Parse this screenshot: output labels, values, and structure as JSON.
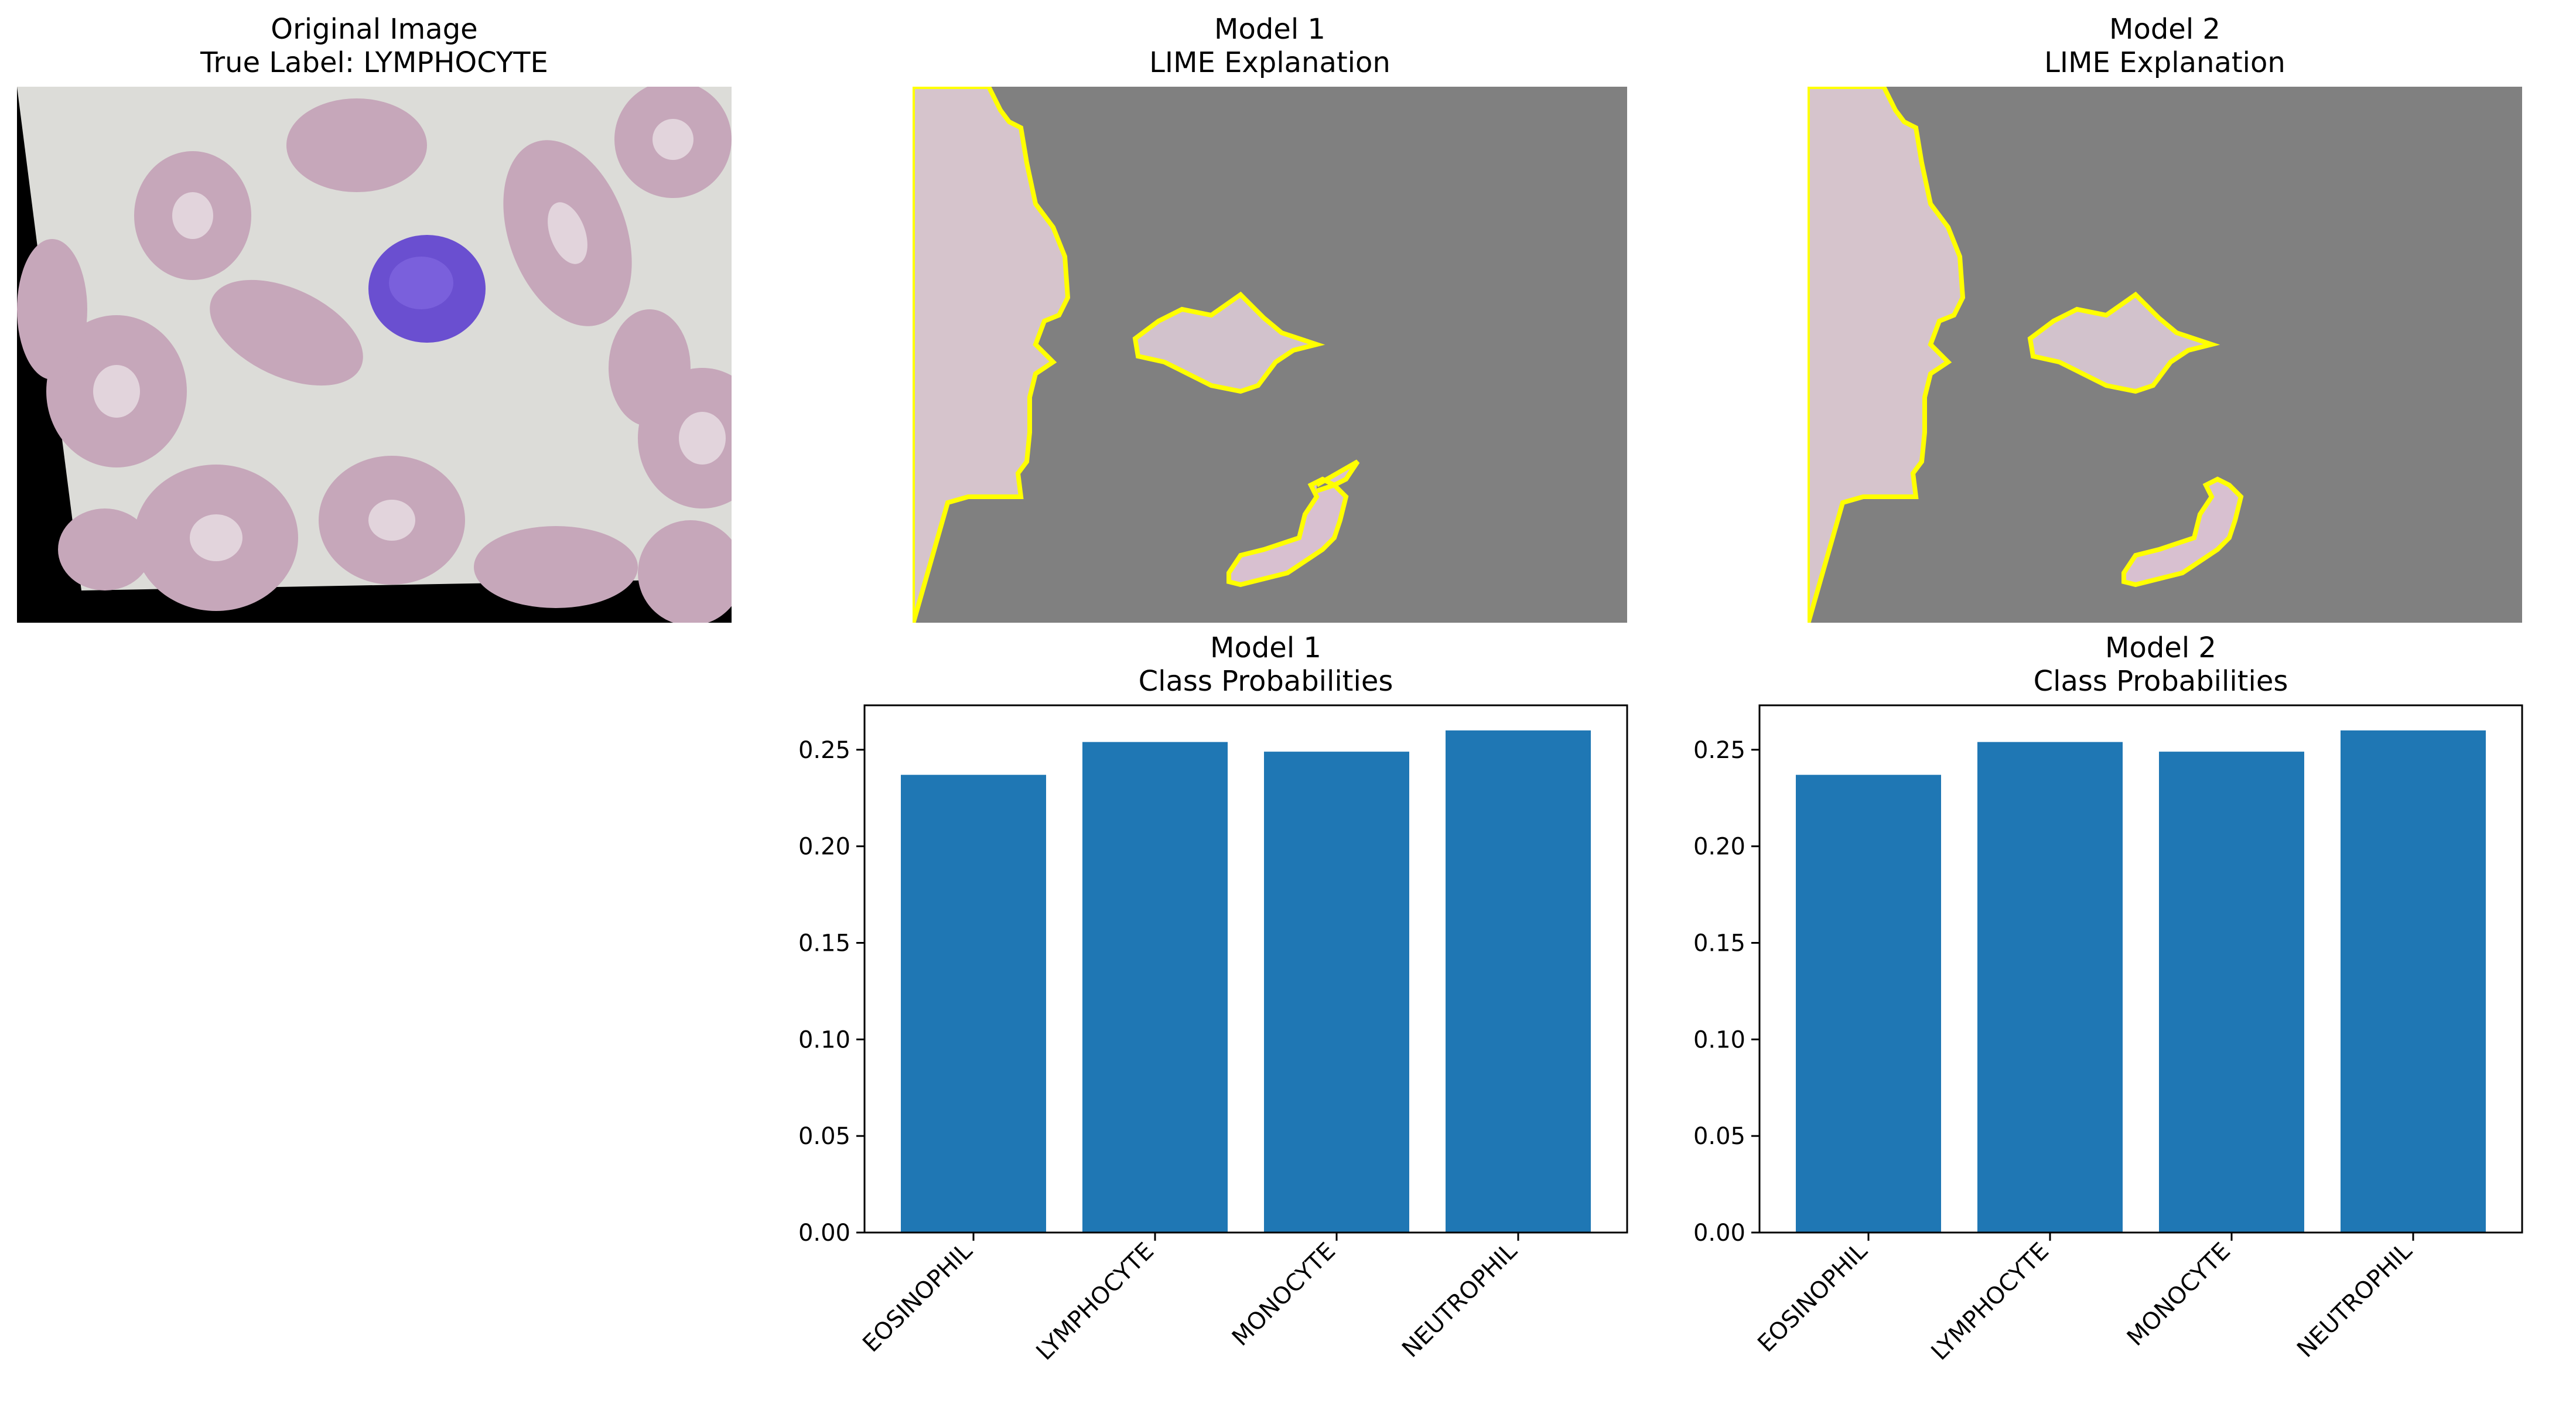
{
  "panels": {
    "original": {
      "title_line1": "Original Image",
      "title_line2": "True Label: LYMPHOCYTE"
    },
    "lime1": {
      "title_line1": "Model 1",
      "title_line2": "LIME Explanation"
    },
    "lime2": {
      "title_line1": "Model 2",
      "title_line2": "LIME Explanation"
    }
  },
  "colors": {
    "bar": "#1f77b4",
    "mask_gray": "#808080",
    "boundary": "#ffff00",
    "smear_background": "#dcdcd8",
    "rbc": "#c4a4b8",
    "rbc_center": "#e2d4dc",
    "lymphocyte": "#6a4fd0"
  },
  "chart_data": [
    {
      "type": "bar",
      "title": "Model 1\nClass Probabilities",
      "title_line1": "Model 1",
      "title_line2": "Class Probabilities",
      "categories": [
        "EOSINOPHIL",
        "LYMPHOCYTE",
        "MONOCYTE",
        "NEUTROPHIL"
      ],
      "values": [
        0.237,
        0.254,
        0.249,
        0.26
      ],
      "xlabel": "",
      "ylabel": "",
      "ylim": [
        0,
        0.273
      ],
      "yticks": [
        "0.00",
        "0.05",
        "0.10",
        "0.15",
        "0.20",
        "0.25"
      ],
      "grid": false
    },
    {
      "type": "bar",
      "title": "Model 2\nClass Probabilities",
      "title_line1": "Model 2",
      "title_line2": "Class Probabilities",
      "categories": [
        "EOSINOPHIL",
        "LYMPHOCYTE",
        "MONOCYTE",
        "NEUTROPHIL"
      ],
      "values": [
        0.237,
        0.254,
        0.249,
        0.26
      ],
      "xlabel": "",
      "ylabel": "",
      "ylim": [
        0,
        0.273
      ],
      "yticks": [
        "0.00",
        "0.05",
        "0.10",
        "0.15",
        "0.20",
        "0.25"
      ],
      "grid": false
    }
  ]
}
